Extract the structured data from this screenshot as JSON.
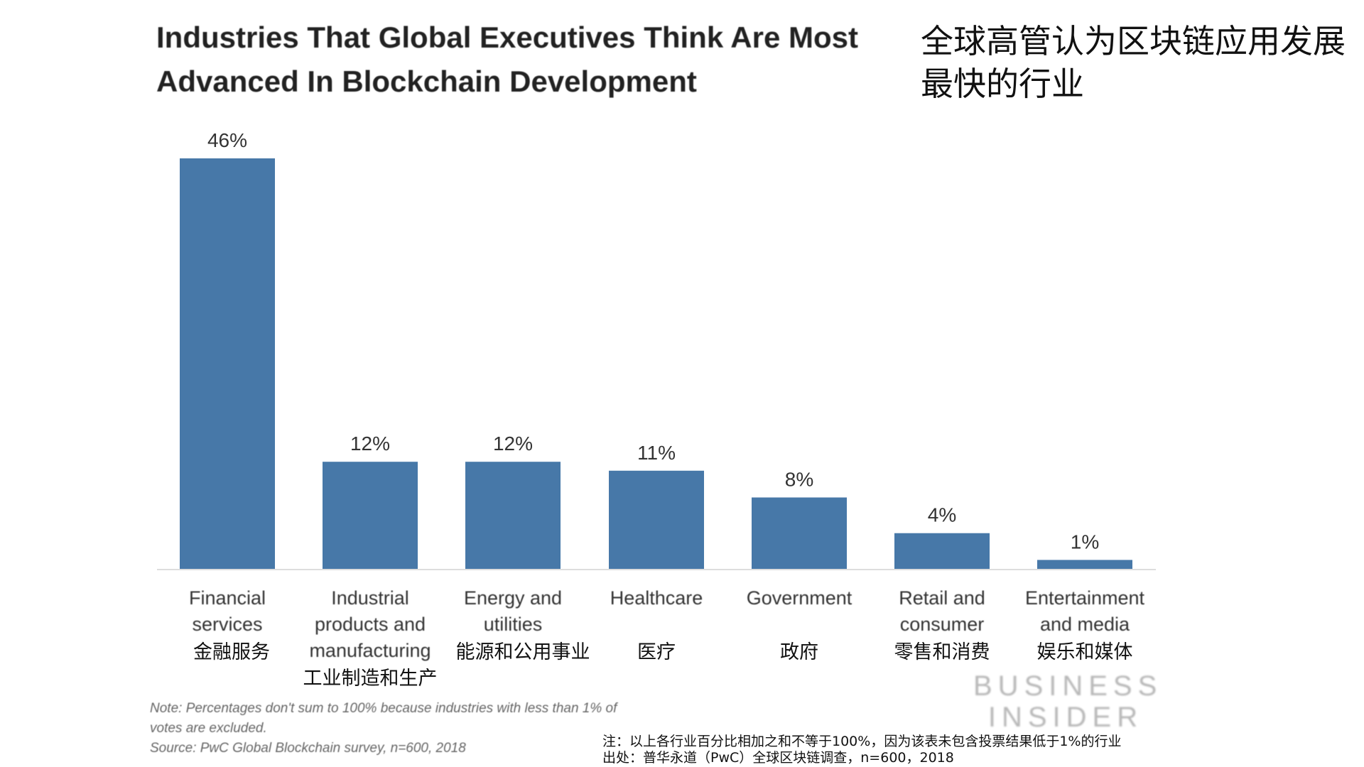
{
  "title_en_line1": "Industries That Global Executives Think Are Most",
  "title_en_line2": "Advanced In Blockchain Development",
  "title_zh": "全球高管认为区块链应用发展最快的行业",
  "chart_data": {
    "type": "bar",
    "title": "Industries That Global Executives Think Are Most Advanced In Blockchain Development",
    "categories": [
      [
        "Financial",
        "services"
      ],
      [
        "Industrial",
        "products and",
        "manufacturing"
      ],
      [
        "Energy and",
        "utilities"
      ],
      [
        "Healthcare"
      ],
      [
        "Government"
      ],
      [
        "Retail and",
        "consumer"
      ],
      [
        "Entertainment",
        "and media"
      ]
    ],
    "categories_zh": [
      "金融服务",
      "工业制造和生产",
      "能源和公用事业",
      "医疗",
      "政府",
      "零售和消费",
      "娱乐和媒体"
    ],
    "values": [
      46,
      12,
      12,
      11,
      8,
      4,
      1
    ],
    "data_labels": [
      "46%",
      "12%",
      "12%",
      "11%",
      "8%",
      "4%",
      "1%"
    ],
    "unit": "%",
    "ylim": [
      0,
      46
    ],
    "grid": false,
    "bar_color": "#4778a8"
  },
  "logo": [
    "BUSINESS",
    "INSIDER"
  ],
  "note": "Note: Percentages don't sum to 100% because industries with less than 1% of",
  "note2": "votes are excluded.",
  "source": "Source: PwC Global Blockchain survey, n=600, 2018",
  "note_zh": "注：以上各行业百分比相加之和不等于100%，因为该表未包含投票结果低于1%的行业",
  "source_zh": "出处：普华永道（PwC）全球区块链调查，n=600，2018"
}
